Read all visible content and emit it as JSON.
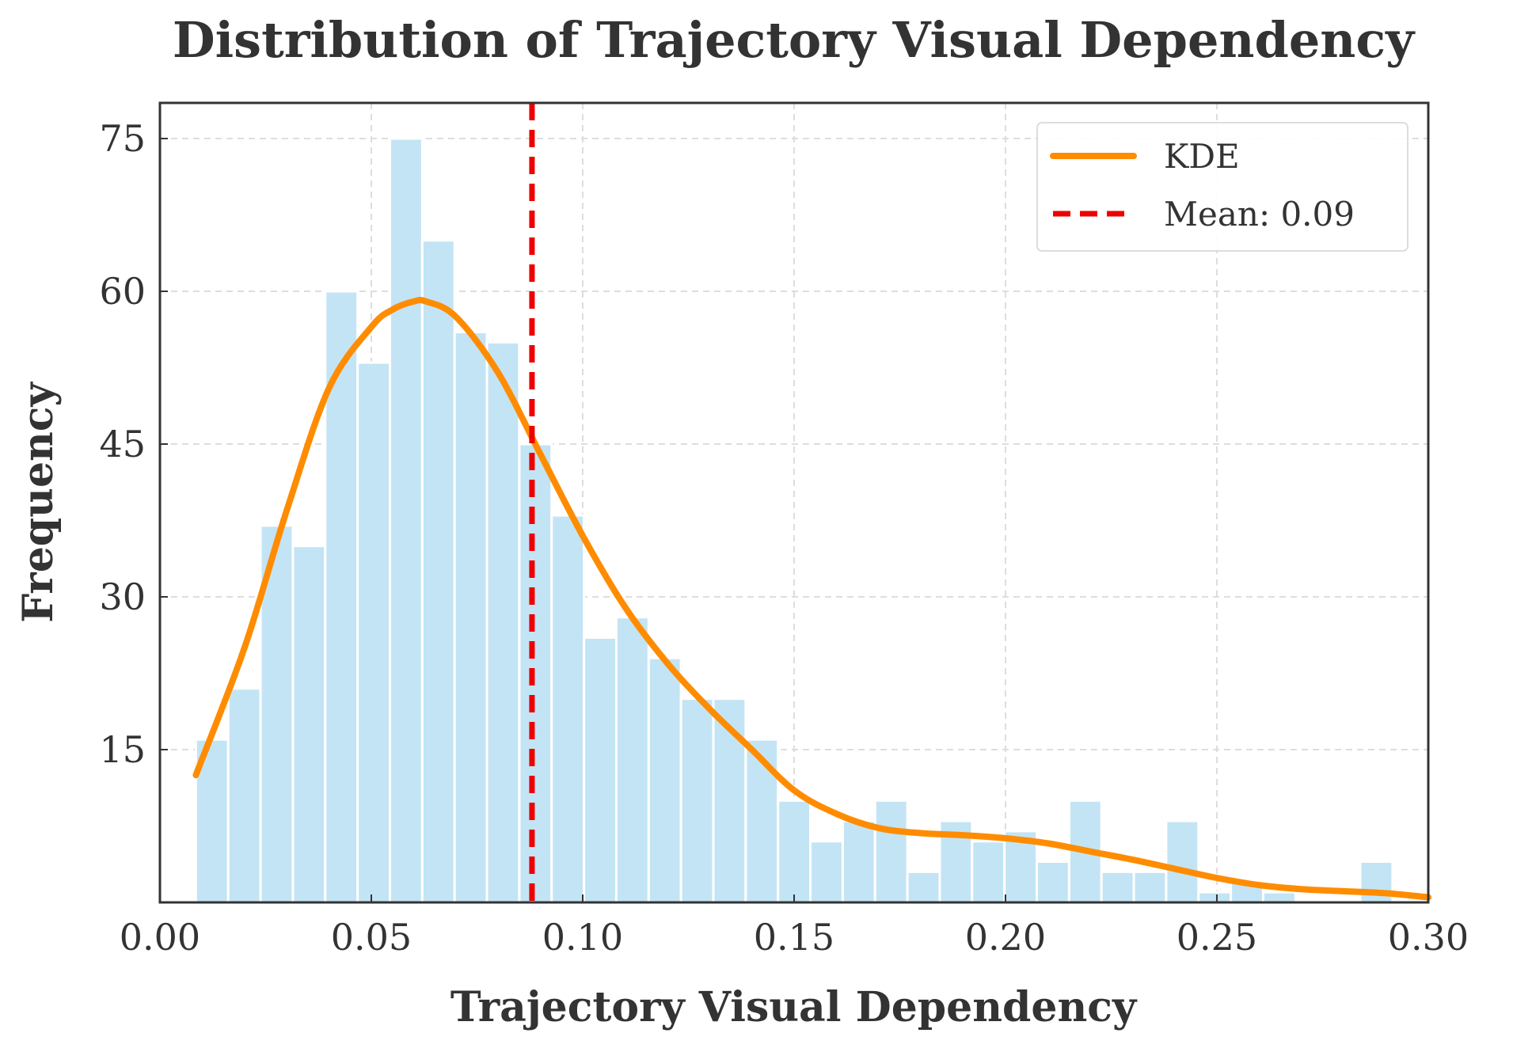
{
  "chart_data": {
    "type": "bar",
    "title": "Distribution of Trajectory Visual Dependency",
    "xlabel": "Trajectory Visual Dependency",
    "ylabel": "Frequency",
    "xlim": [
      0.0,
      0.3
    ],
    "ylim": [
      0,
      78.5
    ],
    "xticks": [
      "0.00",
      "0.05",
      "0.10",
      "0.15",
      "0.20",
      "0.25",
      "0.30"
    ],
    "xtick_values": [
      0.0,
      0.05,
      0.1,
      0.15,
      0.2,
      0.25,
      0.3
    ],
    "yticks": [
      "15",
      "30",
      "45",
      "60",
      "75"
    ],
    "ytick_values": [
      15,
      30,
      45,
      60,
      75
    ],
    "grid": true,
    "legend_position": "top-right",
    "colors": {
      "bars": "#c3e4f4",
      "kde": "#ff8c00",
      "mean": "#ee0000",
      "axes": "#333333",
      "grid": "#dddddd"
    },
    "histogram": {
      "bin_start": 0.0085,
      "bin_width": 0.00765,
      "counts": [
        16,
        21,
        37,
        35,
        60,
        53,
        75,
        65,
        56,
        55,
        45,
        38,
        26,
        28,
        24,
        20,
        20,
        16,
        10,
        6,
        8,
        10,
        3,
        8,
        6,
        7,
        4,
        10,
        3,
        3,
        8,
        1,
        2,
        1,
        0,
        0,
        4
      ]
    },
    "series": [
      {
        "name": "KDE",
        "type": "line",
        "x": [
          0.0085,
          0.02,
          0.03,
          0.04,
          0.05,
          0.055,
          0.06,
          0.063,
          0.07,
          0.08,
          0.09,
          0.1,
          0.11,
          0.12,
          0.13,
          0.14,
          0.15,
          0.16,
          0.17,
          0.18,
          0.19,
          0.2,
          0.21,
          0.22,
          0.23,
          0.24,
          0.25,
          0.26,
          0.27,
          0.28,
          0.29,
          0.3
        ],
        "y": [
          12.5,
          25.0,
          38.5,
          50.5,
          56.5,
          58.2,
          59.0,
          59.0,
          57.5,
          52.0,
          44.0,
          36.0,
          29.0,
          23.5,
          19.0,
          15.0,
          11.0,
          8.7,
          7.3,
          6.8,
          6.6,
          6.3,
          5.8,
          5.0,
          4.2,
          3.3,
          2.4,
          1.7,
          1.3,
          1.1,
          0.9,
          0.5
        ]
      },
      {
        "name": "Mean: 0.09",
        "type": "vline",
        "x": 0.088
      }
    ]
  }
}
